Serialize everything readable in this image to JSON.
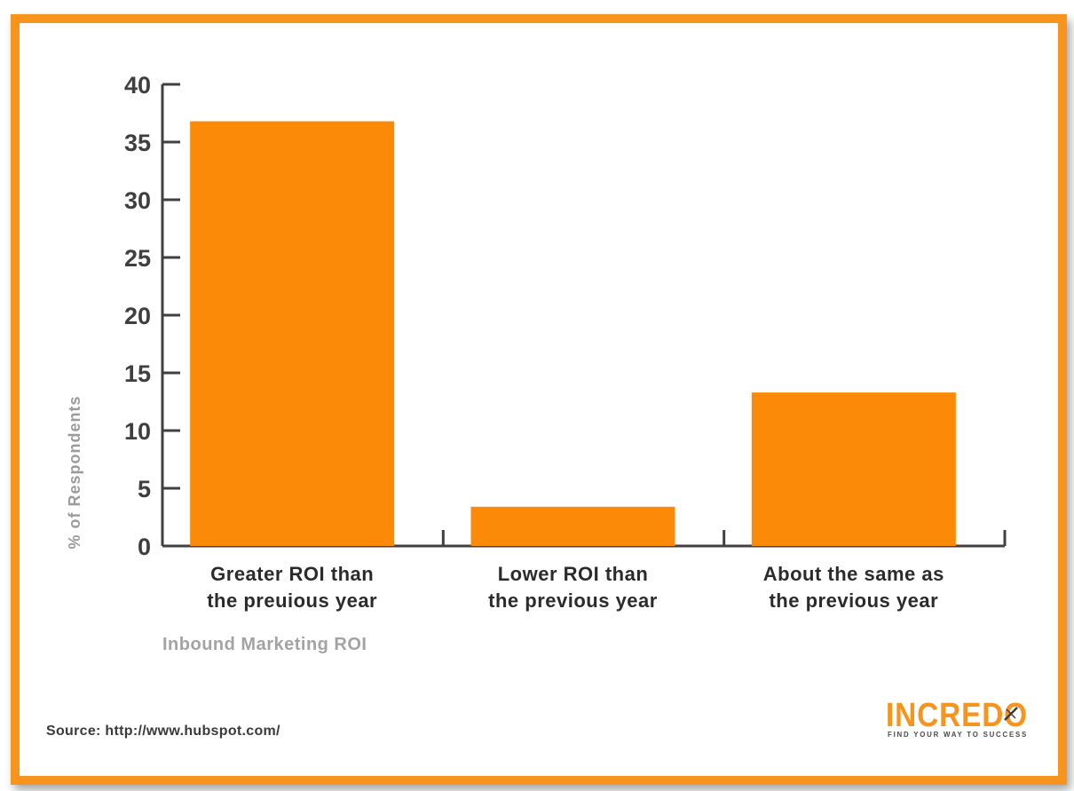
{
  "chart_data": {
    "type": "bar",
    "categories": [
      [
        "Greater ROI than",
        "the preuious year"
      ],
      [
        "Lower ROI than",
        "the previous year"
      ],
      [
        "About the same as",
        "the previous year"
      ]
    ],
    "values": [
      36.8,
      3.4,
      13.3
    ],
    "xlabel": "Inbound Marketing ROI",
    "ylabel": "% of Respondents",
    "ylim": [
      0,
      40
    ],
    "yticks": [
      0,
      5,
      10,
      15,
      20,
      25,
      30,
      35,
      40
    ],
    "grid": false,
    "bar_color": "#fb8a09",
    "axis_color": "#404040"
  },
  "source": "Source:  http://www.hubspot.com/",
  "logo": {
    "name": "INCREDO",
    "tagline": "FIND YOUR WAY TO SUCCESS",
    "color": "#f7941d"
  }
}
